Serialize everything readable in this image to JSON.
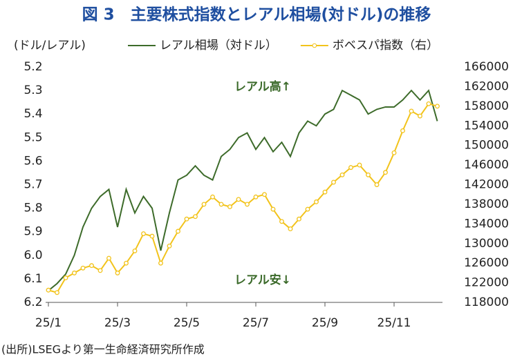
{
  "chart_data": {
    "type": "line",
    "title": "図 3　主要株式指数とレアル相場(対ドル)の推移",
    "ylabel": "(ドル/レアル)",
    "source": "(出所)LSEGより第一生命経済研究所作成",
    "annotations": [
      "レアル高↑",
      "レアル安↓"
    ],
    "categories": [
      "25/1",
      null,
      null,
      null,
      null,
      null,
      null,
      null,
      "25/3",
      null,
      null,
      null,
      null,
      null,
      null,
      null,
      "25/5",
      null,
      null,
      null,
      null,
      null,
      null,
      null,
      "25/7",
      null,
      null,
      null,
      null,
      null,
      null,
      null,
      "25/9",
      null,
      null,
      null,
      null,
      null,
      null,
      null,
      "25/11",
      null,
      null,
      null,
      null,
      null
    ],
    "series": [
      {
        "name": "レアル相場（対ドル）",
        "color": "#3d6b2a",
        "markers": false,
        "values": [
          6.15,
          6.12,
          6.08,
          6.0,
          5.88,
          5.8,
          5.75,
          5.72,
          5.88,
          5.72,
          5.82,
          5.75,
          5.8,
          5.98,
          5.82,
          5.68,
          5.66,
          5.62,
          5.66,
          5.68,
          5.58,
          5.55,
          5.5,
          5.48,
          5.55,
          5.5,
          5.56,
          5.52,
          5.58,
          5.48,
          5.43,
          5.45,
          5.4,
          5.38,
          5.3,
          5.32,
          5.34,
          5.4,
          5.38,
          5.37,
          5.37,
          5.34,
          5.3,
          5.34,
          5.3,
          5.43
        ]
      },
      {
        "name": "ボベスパ指数（右）",
        "color": "#f2c31b",
        "markers": true,
        "axis": "y2",
        "values": [
          120500,
          120000,
          123000,
          124000,
          125000,
          125500,
          124500,
          127000,
          124000,
          126000,
          128500,
          132000,
          131500,
          126000,
          129500,
          132500,
          135000,
          135500,
          138000,
          139500,
          138000,
          137500,
          139000,
          138000,
          139500,
          140000,
          137000,
          134500,
          133000,
          135000,
          137000,
          138500,
          140500,
          142500,
          144000,
          145500,
          146000,
          144000,
          142000,
          144500,
          148500,
          153000,
          157000,
          156000,
          158500,
          158000
        ]
      }
    ],
    "ylim": [
      6.2,
      5.2
    ],
    "yticks": [
      5.2,
      5.3,
      5.4,
      5.5,
      5.6,
      5.7,
      5.8,
      5.9,
      {
        "value": 6,
        "label": "6.0"
      },
      6.1,
      6.2
    ],
    "y2lim": [
      118000,
      166000
    ],
    "y2ticks": [
      118000,
      122000,
      126000,
      130000,
      134000,
      138000,
      142000,
      146000,
      150000,
      154000,
      158000,
      162000,
      166000
    ],
    "grid": false
  }
}
